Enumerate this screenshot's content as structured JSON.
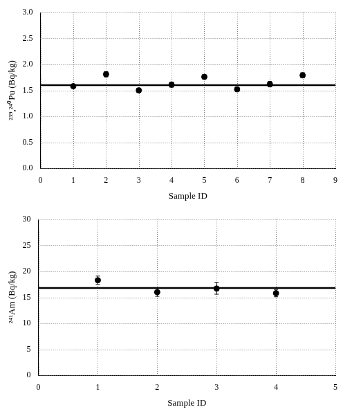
{
  "chart_data": [
    {
      "type": "scatter",
      "x_label": "Sample ID",
      "y_label": "²³⁹,²⁴⁰Pu (Bq/kg)",
      "x": [
        1,
        2,
        3,
        4,
        5,
        6,
        7,
        8
      ],
      "values": [
        1.58,
        1.81,
        1.5,
        1.61,
        1.76,
        1.52,
        1.62,
        1.79
      ],
      "errors": [
        0.04,
        0.05,
        0.04,
        0.05,
        0.04,
        0.04,
        0.05,
        0.05
      ],
      "reference": 1.6,
      "color": "#000000",
      "marker": "circle",
      "xlim": [
        0,
        9
      ],
      "xticks": [
        0,
        1,
        2,
        3,
        4,
        5,
        6,
        7,
        8,
        9
      ],
      "ylim": [
        0,
        3
      ],
      "yticks": [
        {
          "value": 0,
          "label": "0.0"
        },
        {
          "value": 0.5,
          "label": "0.5"
        },
        {
          "value": 1,
          "label": "1.0"
        },
        {
          "value": 1.5,
          "label": "1.5"
        },
        {
          "value": 2,
          "label": "2.0"
        },
        {
          "value": 2.5,
          "label": "2.5"
        },
        {
          "value": 3,
          "label": "3.0"
        }
      ],
      "grid": true
    },
    {
      "type": "scatter",
      "x_label": "Sample ID",
      "y_label": "²⁴¹Am (Bq/kg)",
      "x": [
        1,
        2,
        3,
        4
      ],
      "values": [
        18.3,
        16.0,
        16.7,
        15.8
      ],
      "errors": [
        0.8,
        0.8,
        1.1,
        0.7
      ],
      "reference": 16.8,
      "color": "#000000",
      "marker": "circle",
      "xlim": [
        0,
        5
      ],
      "xticks": [
        0,
        1,
        2,
        3,
        4,
        5
      ],
      "ylim": [
        0,
        30
      ],
      "yticks": [
        0,
        5,
        10,
        15,
        20,
        25,
        30
      ],
      "grid": true
    }
  ]
}
